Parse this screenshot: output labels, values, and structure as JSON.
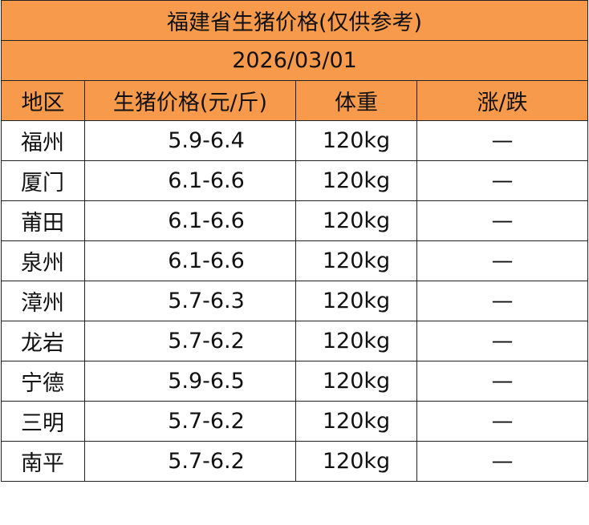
{
  "header": {
    "title": "福建省生猪价格(仅供参考)",
    "date": "2026/03/01"
  },
  "table": {
    "columns": [
      "地区",
      "生猪价格(元/斤)",
      "体重",
      "涨/跌"
    ],
    "rows": [
      [
        "福州",
        "5.9-6.4",
        "120kg",
        "—"
      ],
      [
        "厦门",
        "6.1-6.6",
        "120kg",
        "—"
      ],
      [
        "莆田",
        "6.1-6.6",
        "120kg",
        "—"
      ],
      [
        "泉州",
        "6.1-6.6",
        "120kg",
        "—"
      ],
      [
        "漳州",
        "5.7-6.3",
        "120kg",
        "—"
      ],
      [
        "龙岩",
        "5.7-6.2",
        "120kg",
        "—"
      ],
      [
        "宁德",
        "5.9-6.5",
        "120kg",
        "—"
      ],
      [
        "三明",
        "5.7-6.2",
        "120kg",
        "—"
      ],
      [
        "南平",
        "5.7-6.2",
        "120kg",
        "—"
      ]
    ]
  }
}
